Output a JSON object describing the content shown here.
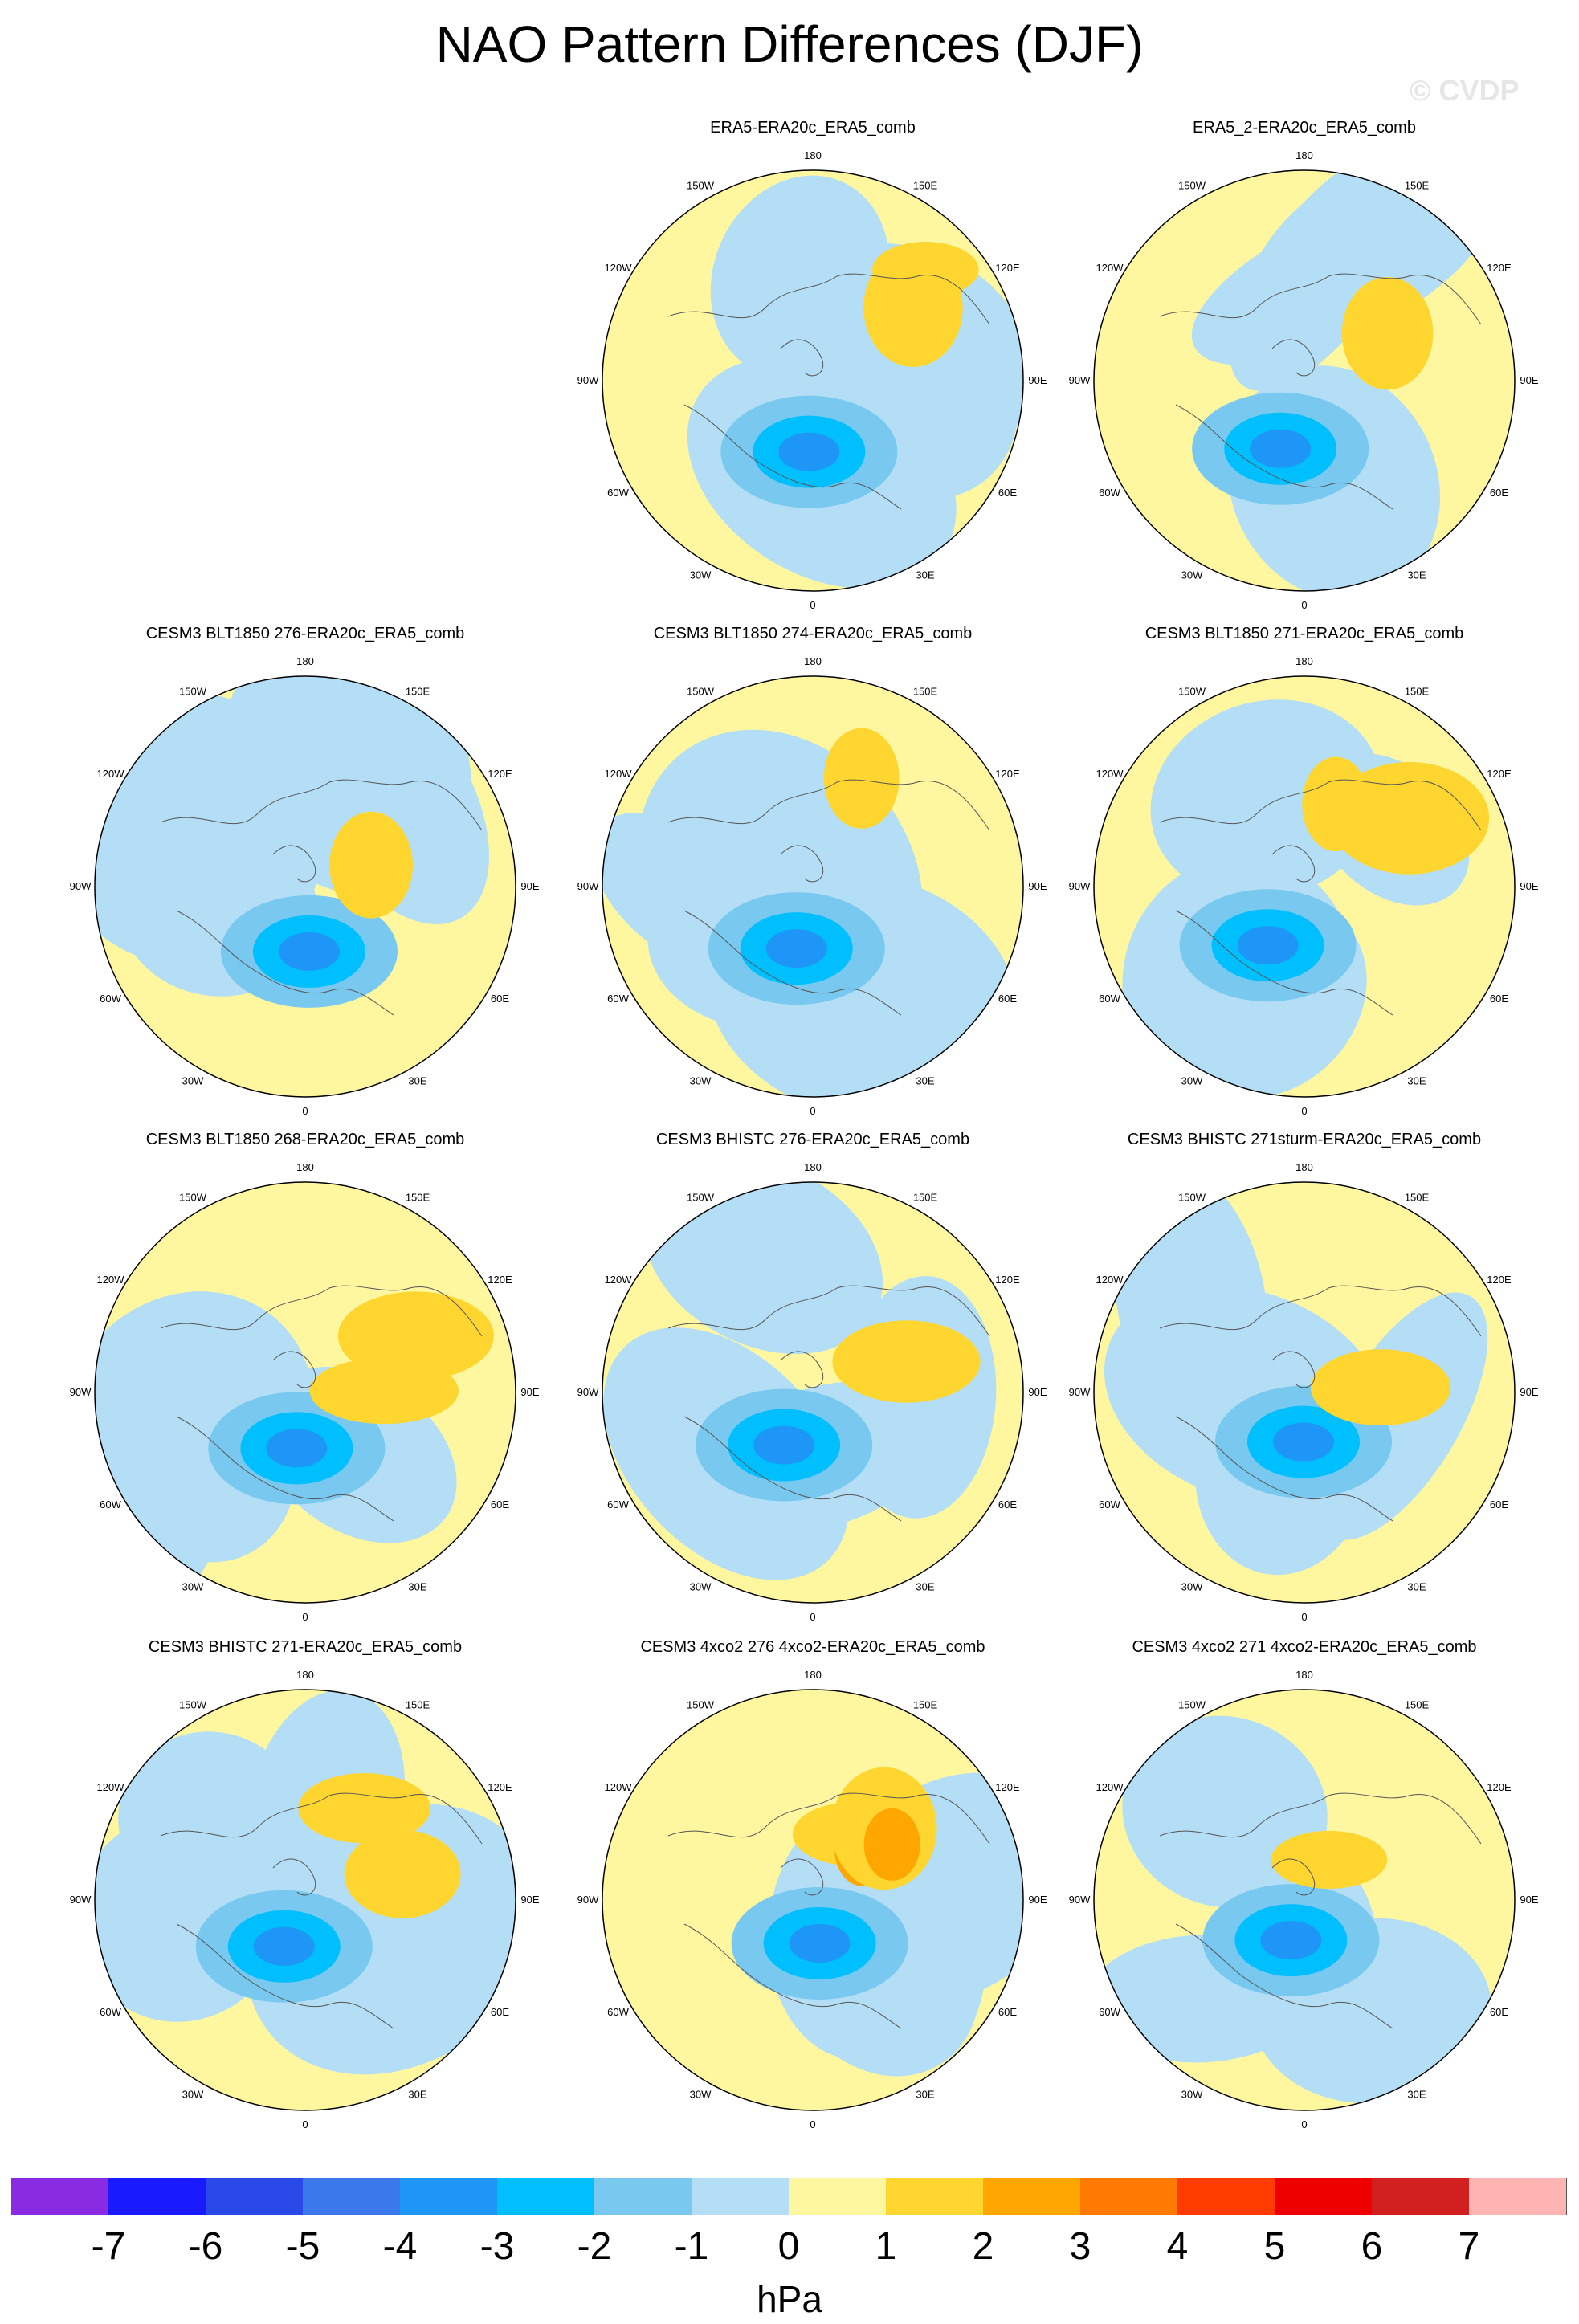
{
  "chart_data": {
    "type": "contour-map-panels",
    "title": "NAO Pattern Differences (DJF)",
    "watermark": "© CVDP",
    "projection": "north polar stereographic",
    "lon_labels": [
      "180",
      "150E",
      "120E",
      "90E",
      "60E",
      "30E",
      "0",
      "30W",
      "60W",
      "90W",
      "120W",
      "150W"
    ],
    "panels": [
      {
        "title": "",
        "empty": true
      },
      {
        "title": "ERA5-ERA20c_ERA5_comb"
      },
      {
        "title": "ERA5_2-ERA20c_ERA5_comb"
      },
      {
        "title": "CESM3 BLT1850 276-ERA20c_ERA5_comb"
      },
      {
        "title": "CESM3 BLT1850 274-ERA20c_ERA5_comb"
      },
      {
        "title": "CESM3 BLT1850 271-ERA20c_ERA5_comb"
      },
      {
        "title": "CESM3 BLT1850 268-ERA20c_ERA5_comb"
      },
      {
        "title": "CESM3 BHISTC 276-ERA20c_ERA5_comb"
      },
      {
        "title": "CESM3 BHISTC 271sturm-ERA20c_ERA5_comb"
      },
      {
        "title": "CESM3 BHISTC 271-ERA20c_ERA5_comb"
      },
      {
        "title": "CESM3 4xco2 276 4xco2-ERA20c_ERA5_comb"
      },
      {
        "title": "CESM3 4xco2 271 4xco2-ERA20c_ERA5_comb"
      }
    ],
    "colorbar": {
      "label": "hPa",
      "ticks": [
        "-7",
        "-6",
        "-5",
        "-4",
        "-3",
        "-2",
        "-1",
        "0",
        "1",
        "2",
        "3",
        "4",
        "5",
        "6",
        "7"
      ],
      "colors": [
        "#8a2be2",
        "#1a1aff",
        "#2848e8",
        "#3a78ec",
        "#1e96f7",
        "#00bfff",
        "#78c8f0",
        "#b4def5",
        "#fff7a0",
        "#ffd630",
        "#ffa600",
        "#ff7a00",
        "#ff3c00",
        "#ee0000",
        "#d22020",
        "#ffb4b4"
      ]
    }
  }
}
